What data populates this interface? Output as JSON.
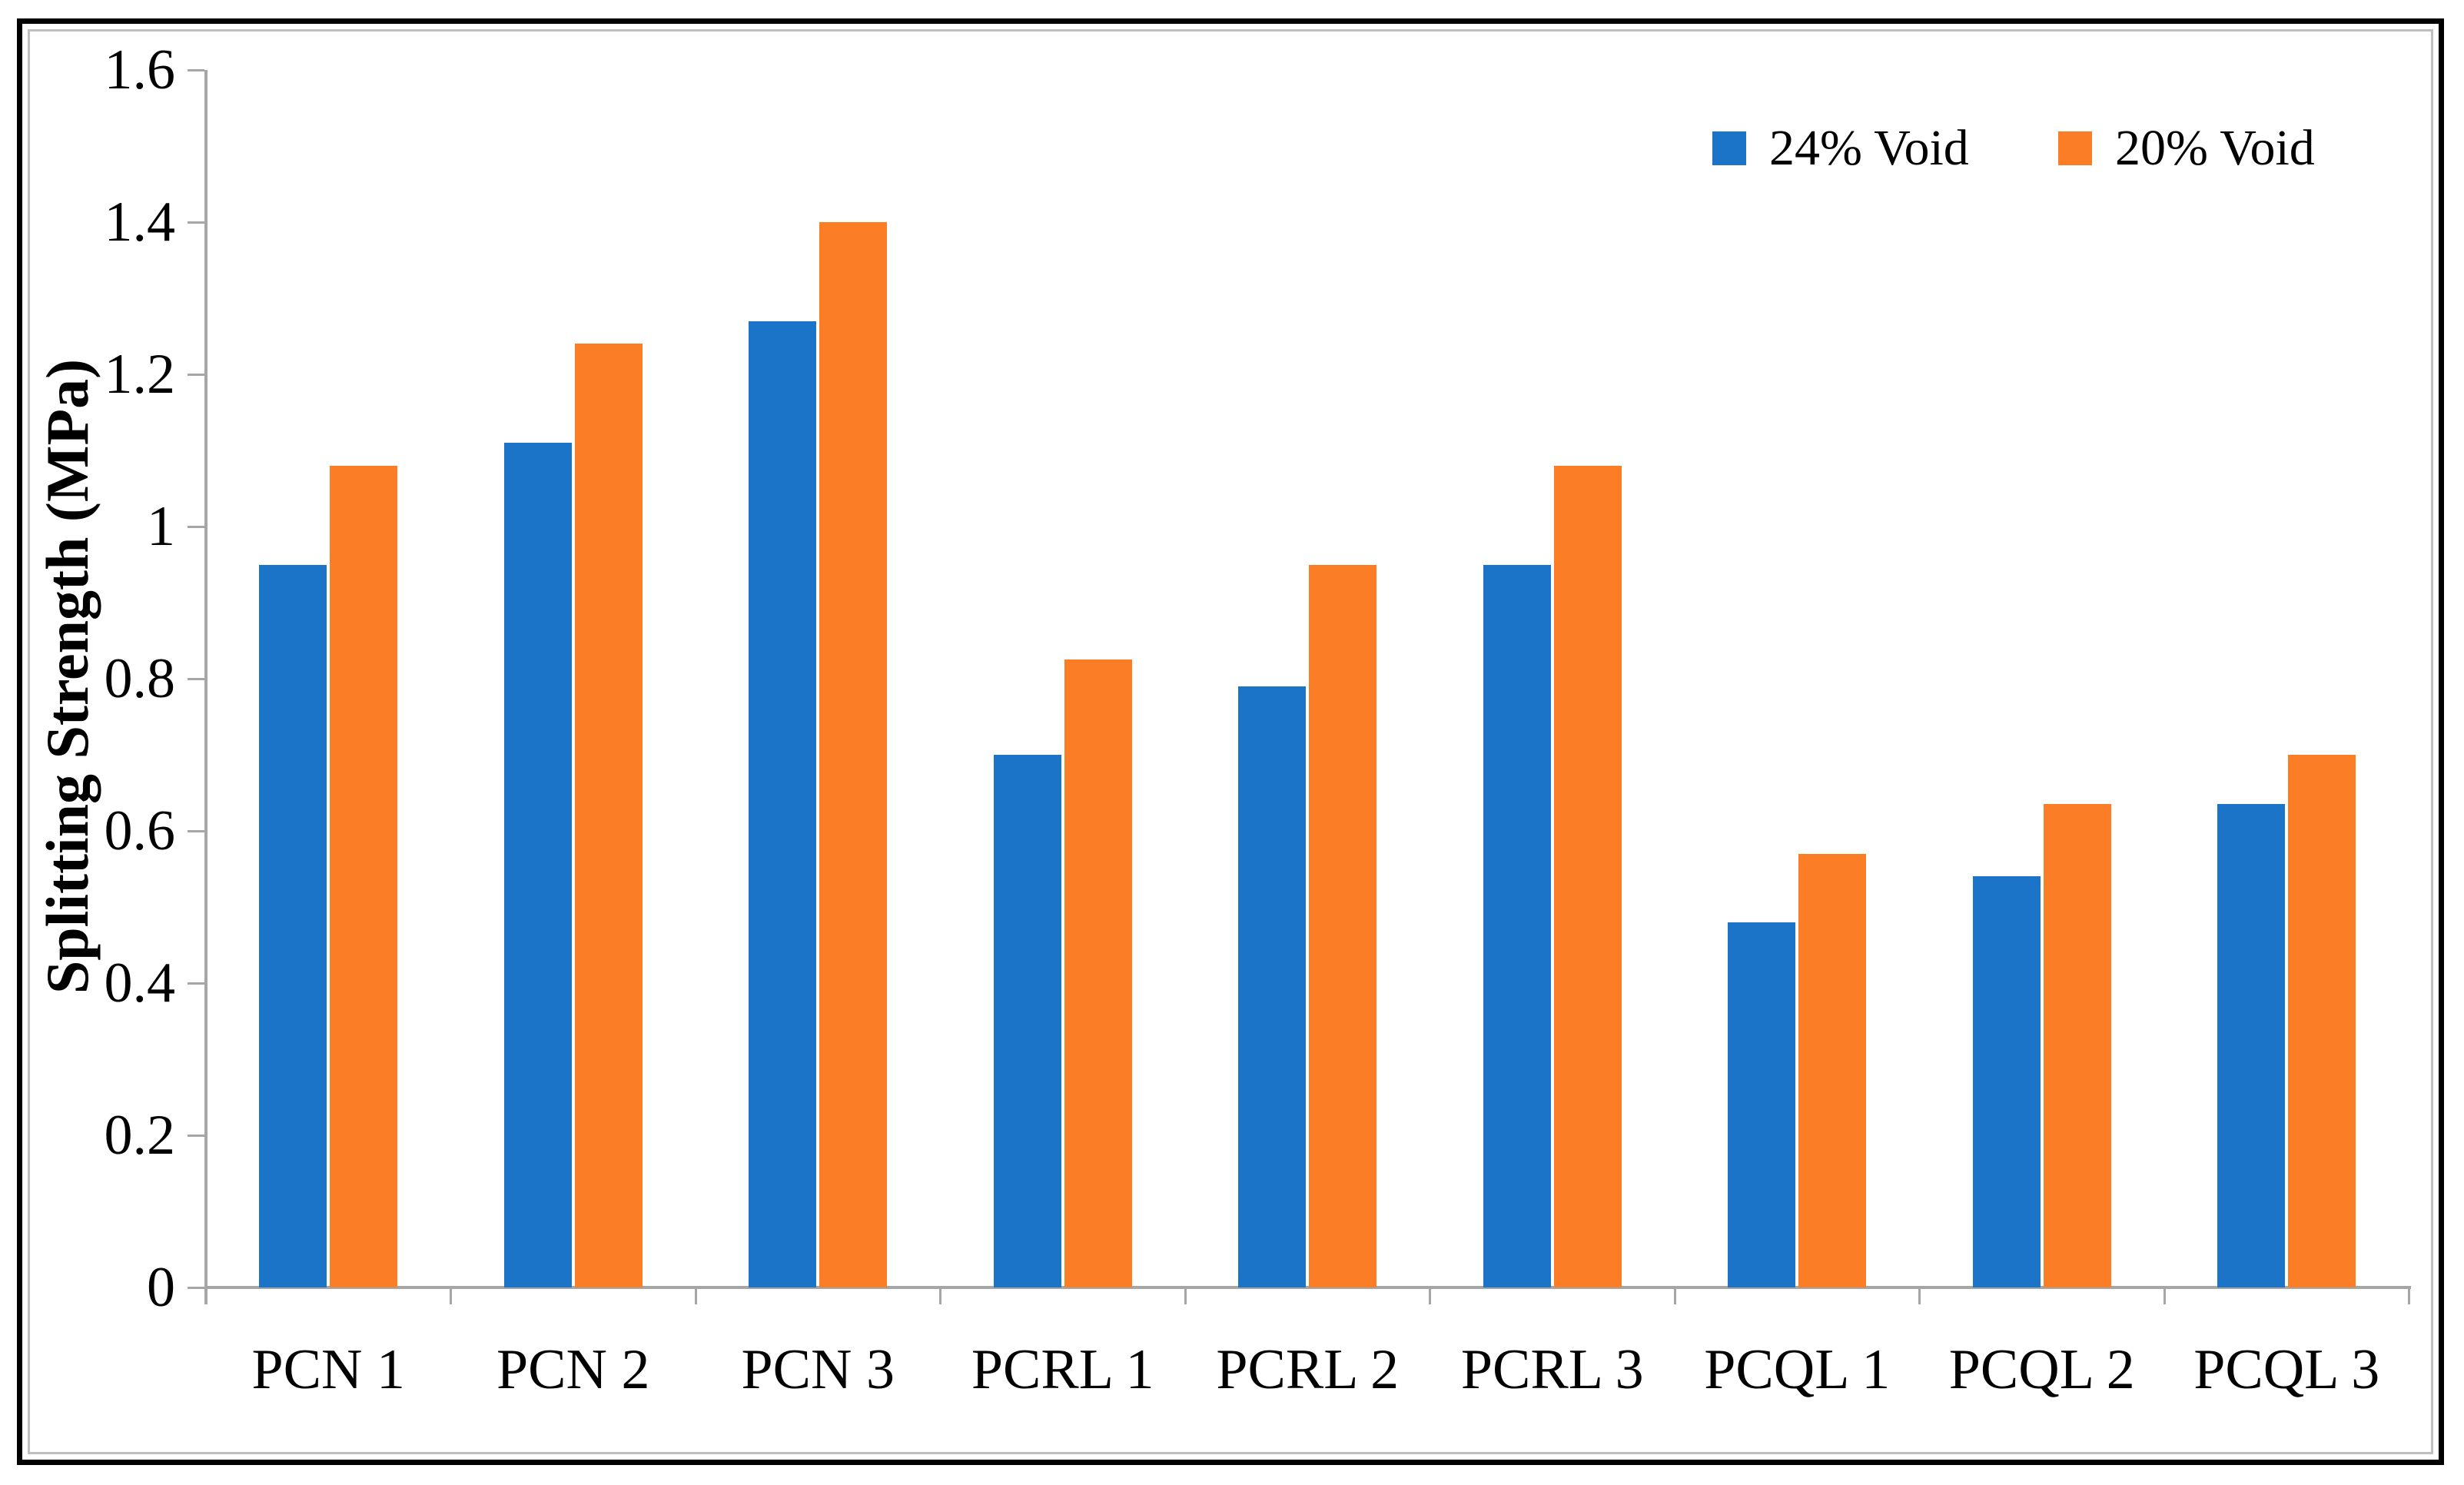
{
  "chart_data": {
    "type": "bar",
    "title": "",
    "xlabel": "",
    "ylabel": "Splitting Strength (MPa)",
    "categories": [
      "PCN 1",
      "PCN 2",
      "PCN 3",
      "PCRL 1",
      "PCRL 2",
      "PCRL 3",
      "PCQL 1",
      "PCQL 2",
      "PCQL 3"
    ],
    "series": [
      {
        "name": "24% Void",
        "color": "#1b74c8",
        "values": [
          0.95,
          1.11,
          1.27,
          0.7,
          0.79,
          0.95,
          0.48,
          0.54,
          0.635
        ]
      },
      {
        "name": "20% Void",
        "color": "#fb7d26",
        "values": [
          1.08,
          1.24,
          1.4,
          0.825,
          0.95,
          1.08,
          0.57,
          0.635,
          0.7
        ]
      }
    ],
    "ylim": [
      0,
      1.6
    ],
    "ytick_labels": [
      "0",
      "0.2",
      "0.4",
      "0.6",
      "0.8",
      "1",
      "1.2",
      "1.4",
      "1.6"
    ],
    "grid": false,
    "legend_position": "top-right"
  },
  "colors": {
    "axis": "#a6a6a6",
    "outer_frame": "#000000",
    "chart_border": "#bfbfbf",
    "background": "#ffffff"
  }
}
